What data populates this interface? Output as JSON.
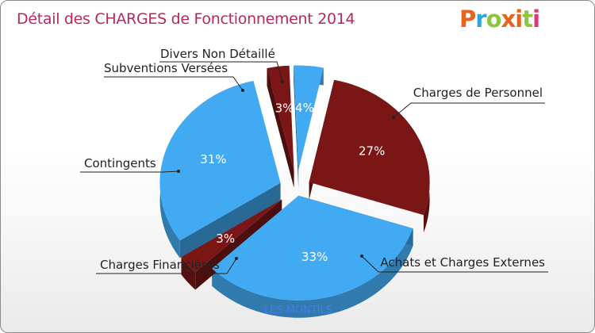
{
  "title": "Détail des CHARGES de Fonctionnement 2014",
  "logo": {
    "text": "Proxiti",
    "letters": [
      "P",
      "r",
      "o",
      "x",
      "i",
      "t",
      "i"
    ],
    "colors": [
      "#e8641b",
      "#2fa5d8",
      "#8cc63f",
      "#e8641b",
      "#e8641b",
      "#8cc63f",
      "#d9387a"
    ]
  },
  "footer": "LES MONTILS",
  "colors": {
    "dark_red": "#7b1616",
    "blue": "#42aaf2"
  },
  "chart_data": {
    "type": "pie",
    "title": "Détail des CHARGES de Fonctionnement 2014",
    "slices": [
      {
        "label": "Charges de Personnel",
        "value": 27,
        "pct_label": "27%",
        "color": "#7b1616"
      },
      {
        "label": "Achats et Charges Externes",
        "value": 33,
        "pct_label": "33%",
        "color": "#42aaf2"
      },
      {
        "label": "Charges Financières",
        "value": 3,
        "pct_label": "3%",
        "color": "#7b1616"
      },
      {
        "label": "Contingents",
        "value": 31,
        "pct_label": "31%",
        "color": "#42aaf2"
      },
      {
        "label": "Subventions Versées",
        "value": 3,
        "pct_label": "3%",
        "color": "#7b1616"
      },
      {
        "label": "Divers Non Détaillé",
        "value": 4,
        "pct_label": "4%",
        "color": "#42aaf2"
      }
    ]
  }
}
